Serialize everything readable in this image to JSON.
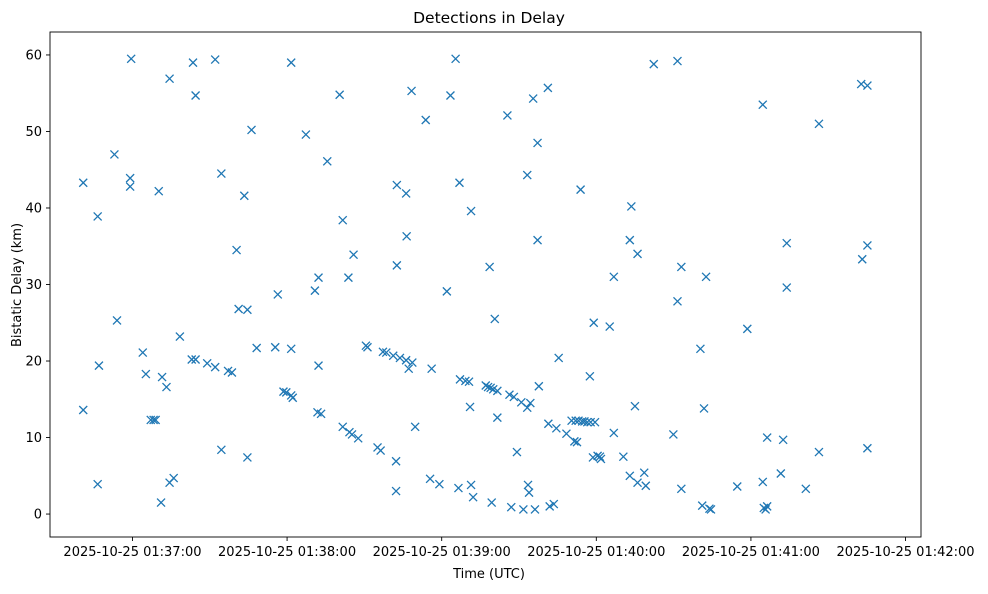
{
  "chart_data": {
    "type": "scatter",
    "title": "Detections in Delay",
    "xlabel": "Time (UTC)",
    "ylabel": "Bistatic Delay (km)",
    "marker": "x",
    "color": "#1f77b4",
    "x_unit": "seconds since 2025-10-25 01:36:00",
    "xlim": [
      28,
      366
    ],
    "ylim": [
      -3,
      63
    ],
    "xticks": [
      {
        "value": 60,
        "label": "2025-10-25 01:37:00"
      },
      {
        "value": 120,
        "label": "2025-10-25 01:38:00"
      },
      {
        "value": 180,
        "label": "2025-10-25 01:39:00"
      },
      {
        "value": 240,
        "label": "2025-10-25 01:40:00"
      },
      {
        "value": 300,
        "label": "2025-10-25 01:41:00"
      },
      {
        "value": 360,
        "label": "2025-10-25 01:42:00"
      }
    ],
    "yticks": [
      {
        "value": 0,
        "label": "0"
      },
      {
        "value": 10,
        "label": "10"
      },
      {
        "value": 20,
        "label": "20"
      },
      {
        "value": 30,
        "label": "30"
      },
      {
        "value": 40,
        "label": "40"
      },
      {
        "value": 50,
        "label": "50"
      },
      {
        "value": 60,
        "label": "60"
      }
    ],
    "points": [
      [
        40.9,
        43.3
      ],
      [
        40.9,
        13.6
      ],
      [
        46.5,
        38.9
      ],
      [
        46.5,
        3.9
      ],
      [
        47,
        19.4
      ],
      [
        53,
        47
      ],
      [
        54,
        25.3
      ],
      [
        59.1,
        43.9
      ],
      [
        59.1,
        42.8
      ],
      [
        59.5,
        59.5
      ],
      [
        64,
        21.1
      ],
      [
        65.2,
        18.3
      ],
      [
        67.1,
        12.3
      ],
      [
        68.2,
        12.3
      ],
      [
        69,
        12.3
      ],
      [
        70.2,
        42.2
      ],
      [
        71.1,
        1.5
      ],
      [
        71.5,
        17.9
      ],
      [
        73.2,
        16.6
      ],
      [
        74.4,
        56.9
      ],
      [
        74.4,
        4.1
      ],
      [
        76,
        4.7
      ],
      [
        78.4,
        23.2
      ],
      [
        83,
        20.2
      ],
      [
        84.5,
        20.2
      ],
      [
        83.5,
        59
      ],
      [
        84.5,
        54.7
      ],
      [
        89,
        19.7
      ],
      [
        92.1,
        19.2
      ],
      [
        92.1,
        59.4
      ],
      [
        94.5,
        44.5
      ],
      [
        94.5,
        8.4
      ],
      [
        97.1,
        18.7
      ],
      [
        98.6,
        18.5
      ],
      [
        100.4,
        34.5
      ],
      [
        101.2,
        26.8
      ],
      [
        103.4,
        41.6
      ],
      [
        104.6,
        26.7
      ],
      [
        104.6,
        7.4
      ],
      [
        106.2,
        50.2
      ],
      [
        108.2,
        21.7
      ],
      [
        115.4,
        21.8
      ],
      [
        116.4,
        28.7
      ],
      [
        118.6,
        16
      ],
      [
        119.7,
        15.9
      ],
      [
        121.6,
        15.5
      ],
      [
        122.2,
        15.2
      ],
      [
        121.6,
        59
      ],
      [
        121.6,
        21.6
      ],
      [
        127.3,
        49.6
      ],
      [
        130.8,
        29.2
      ],
      [
        131.8,
        13.3
      ],
      [
        132.2,
        30.9
      ],
      [
        132.2,
        19.4
      ],
      [
        133.2,
        13.1
      ],
      [
        135.6,
        46.1
      ],
      [
        140.4,
        54.8
      ],
      [
        141.6,
        38.4
      ],
      [
        141.6,
        11.4
      ],
      [
        143.8,
        30.9
      ],
      [
        144.2,
        10.7
      ],
      [
        145.2,
        10.4
      ],
      [
        145.8,
        33.9
      ],
      [
        147.6,
        9.9
      ],
      [
        150.6,
        22
      ],
      [
        151.2,
        21.8
      ],
      [
        155.1,
        8.7
      ],
      [
        156.3,
        8.3
      ],
      [
        157.2,
        21.2
      ],
      [
        158.5,
        21.1
      ],
      [
        161.2,
        20.7
      ],
      [
        162.3,
        3
      ],
      [
        162.3,
        6.9
      ],
      [
        162.6,
        32.5
      ],
      [
        162.6,
        43
      ],
      [
        163.8,
        20.4
      ],
      [
        166.2,
        41.9
      ],
      [
        166.2,
        20.1
      ],
      [
        166.4,
        36.3
      ],
      [
        167.2,
        19
      ],
      [
        168.6,
        19.8
      ],
      [
        168.3,
        55.3
      ],
      [
        169.7,
        11.4
      ],
      [
        173.8,
        51.5
      ],
      [
        175.5,
        4.6
      ],
      [
        176.1,
        19
      ],
      [
        179.1,
        3.9
      ],
      [
        182,
        29.1
      ],
      [
        183.4,
        54.7
      ],
      [
        185.4,
        59.5
      ],
      [
        186.5,
        3.4
      ],
      [
        186.9,
        43.3
      ],
      [
        187.1,
        17.6
      ],
      [
        189.2,
        17.4
      ],
      [
        190.6,
        17.3
      ],
      [
        191.4,
        3.8
      ],
      [
        191,
        14
      ],
      [
        191.4,
        39.6
      ],
      [
        192.2,
        2.2
      ],
      [
        197.1,
        16.8
      ],
      [
        198,
        16.6
      ],
      [
        198.6,
        32.3
      ],
      [
        199,
        16.5
      ],
      [
        200,
        16.3
      ],
      [
        199.4,
        1.5
      ],
      [
        200.6,
        25.5
      ],
      [
        201.6,
        16.1
      ],
      [
        201.6,
        12.6
      ],
      [
        205.5,
        52.1
      ],
      [
        206.3,
        15.6
      ],
      [
        207,
        0.9
      ],
      [
        208,
        15.3
      ],
      [
        209.2,
        8.1
      ],
      [
        210.9,
        14.6
      ],
      [
        211.7,
        0.6
      ],
      [
        213.2,
        13.9
      ],
      [
        213.2,
        44.3
      ],
      [
        213.5,
        3.8
      ],
      [
        213.9,
        2.8
      ],
      [
        214.4,
        14.5
      ],
      [
        215.5,
        54.3
      ],
      [
        216.2,
        0.6
      ],
      [
        217.2,
        48.5
      ],
      [
        217.2,
        35.8
      ],
      [
        217.7,
        16.7
      ],
      [
        221.2,
        55.7
      ],
      [
        221.9,
        1
      ],
      [
        221.4,
        11.8
      ],
      [
        223.5,
        1.3
      ],
      [
        224.5,
        11.2
      ],
      [
        225.4,
        20.4
      ],
      [
        228.4,
        10.5
      ],
      [
        230.4,
        12.2
      ],
      [
        231.5,
        9.5
      ],
      [
        232,
        12.2
      ],
      [
        232.5,
        9.4
      ],
      [
        233.1,
        12.2
      ],
      [
        233.9,
        42.4
      ],
      [
        234.5,
        12.1
      ],
      [
        235.4,
        12.1
      ],
      [
        236.5,
        12
      ],
      [
        237.5,
        18
      ],
      [
        237.8,
        12
      ],
      [
        238.7,
        7.4
      ],
      [
        239,
        25
      ],
      [
        239.5,
        12
      ],
      [
        240.5,
        7.6
      ],
      [
        241.4,
        7.5
      ],
      [
        241.8,
        7.2
      ],
      [
        245.2,
        24.5
      ],
      [
        246.8,
        10.6
      ],
      [
        246.8,
        31
      ],
      [
        250.5,
        7.5
      ],
      [
        253,
        5
      ],
      [
        253.6,
        40.2
      ],
      [
        253,
        35.8
      ],
      [
        255,
        14.1
      ],
      [
        256,
        34
      ],
      [
        256,
        4.1
      ],
      [
        258.6,
        5.4
      ],
      [
        259.2,
        3.7
      ],
      [
        262.3,
        58.8
      ],
      [
        269.9,
        10.4
      ],
      [
        271.5,
        27.8
      ],
      [
        271.5,
        59.2
      ],
      [
        273,
        32.3
      ],
      [
        273,
        3.3
      ],
      [
        280.4,
        21.6
      ],
      [
        281.1,
        1.1
      ],
      [
        281.8,
        13.8
      ],
      [
        282.6,
        31
      ],
      [
        283.9,
        0.7
      ],
      [
        284.5,
        0.6
      ],
      [
        294.7,
        3.6
      ],
      [
        298.6,
        24.2
      ],
      [
        304.6,
        4.2
      ],
      [
        304.6,
        53.5
      ],
      [
        305,
        0.8
      ],
      [
        305.7,
        0.6
      ],
      [
        306.3,
        10
      ],
      [
        306.3,
        1
      ],
      [
        311.6,
        5.3
      ],
      [
        312.5,
        9.7
      ],
      [
        313.9,
        35.4
      ],
      [
        313.9,
        29.6
      ],
      [
        321.3,
        3.3
      ],
      [
        326.4,
        51
      ],
      [
        326.4,
        8.1
      ],
      [
        342.8,
        56.2
      ],
      [
        343.2,
        33.3
      ],
      [
        345.2,
        56
      ],
      [
        345.2,
        35.1
      ],
      [
        345.2,
        8.6
      ]
    ]
  }
}
